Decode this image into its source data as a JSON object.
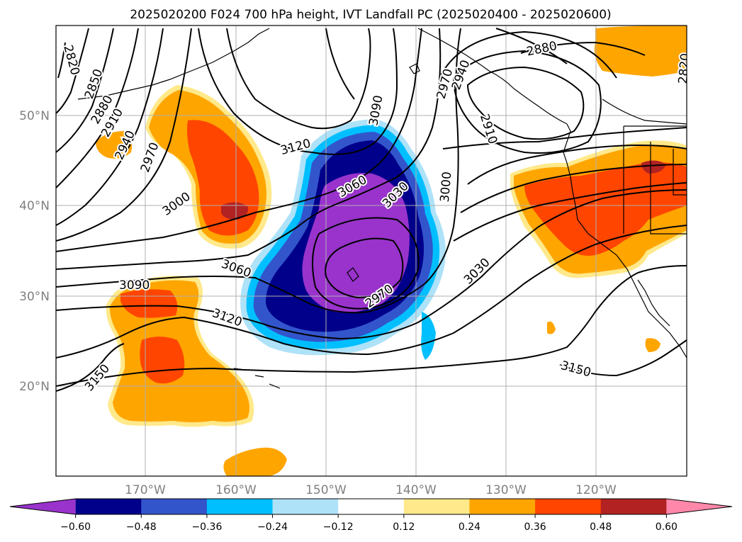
{
  "title": "2025020200 F024 700 hPa height, IVT Landfall PC (2025020400 - 2025020600)",
  "lon_labels": [
    "170°W",
    "160°W",
    "150°W",
    "140°W",
    "130°W",
    "120°W"
  ],
  "lat_labels": [
    "50°N",
    "40°N",
    "30°N",
    "20°N"
  ],
  "contour_labels": [
    {
      "text": "2820"
    },
    {
      "text": "2850"
    },
    {
      "text": "2880"
    },
    {
      "text": "2910"
    },
    {
      "text": "2940"
    },
    {
      "text": "2970"
    },
    {
      "text": "3000"
    },
    {
      "text": "3090"
    },
    {
      "text": "3120"
    },
    {
      "text": "3060"
    },
    {
      "text": "3030"
    },
    {
      "text": "3000"
    },
    {
      "text": "2970"
    },
    {
      "text": "2940"
    },
    {
      "text": "2880"
    },
    {
      "text": "2820"
    },
    {
      "text": "2910"
    },
    {
      "text": "3030"
    },
    {
      "text": "3060"
    },
    {
      "text": "3090"
    },
    {
      "text": "3120"
    },
    {
      "text": "3150"
    },
    {
      "text": "2970"
    },
    {
      "text": "3150"
    }
  ],
  "colorbar": {
    "colors": [
      "#9933cc",
      "#00008b",
      "#3355cc",
      "#00bfff",
      "#aee2f8",
      "#ffffff",
      "#ffe98a",
      "#ffa500",
      "#ff4500",
      "#b22222",
      "#ff88aa"
    ],
    "ticks": [
      "−0.60",
      "−0.48",
      "−0.36",
      "−0.24",
      "−0.12",
      "0.12",
      "0.24",
      "0.36",
      "0.48",
      "0.60"
    ]
  }
}
